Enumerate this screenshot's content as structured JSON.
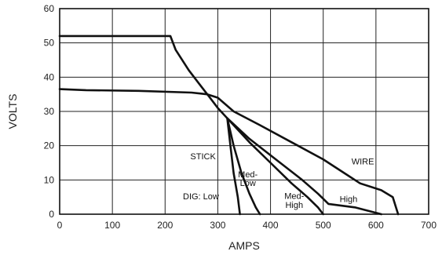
{
  "chart_data": {
    "type": "line",
    "title": "",
    "xlabel": "AMPS",
    "ylabel": "VOLTS",
    "xlim": [
      0,
      700
    ],
    "ylim": [
      0,
      60
    ],
    "x_ticks": [
      0,
      100,
      200,
      300,
      400,
      500,
      600,
      700
    ],
    "y_ticks": [
      0,
      10,
      20,
      30,
      40,
      50,
      60
    ],
    "grid": true,
    "series": [
      {
        "points": [
          [
            0,
            52
          ],
          [
            205,
            52
          ],
          [
            210,
            52
          ],
          [
            220,
            48
          ],
          [
            245,
            42
          ],
          [
            265,
            38
          ],
          [
            285,
            34
          ],
          [
            300,
            31
          ],
          [
            318,
            28
          ],
          [
            324,
            20
          ],
          [
            330,
            12
          ],
          [
            338,
            5
          ],
          [
            342,
            0
          ]
        ]
      },
      {
        "points": [
          [
            318,
            28
          ],
          [
            330,
            20
          ],
          [
            345,
            12
          ],
          [
            360,
            6
          ],
          [
            372,
            2
          ],
          [
            380,
            0
          ]
        ]
      },
      {
        "points": [
          [
            318,
            28
          ],
          [
            360,
            21
          ],
          [
            400,
            15
          ],
          [
            440,
            9
          ],
          [
            470,
            5
          ],
          [
            490,
            2
          ],
          [
            500,
            0
          ]
        ]
      },
      {
        "points": [
          [
            318,
            28
          ],
          [
            360,
            22
          ],
          [
            410,
            16
          ],
          [
            460,
            10
          ],
          [
            490,
            6
          ],
          [
            510,
            3
          ],
          [
            560,
            2
          ],
          [
            610,
            0
          ]
        ]
      },
      {
        "points": [
          [
            0,
            36.5
          ],
          [
            50,
            36.2
          ],
          [
            150,
            36
          ],
          [
            250,
            35.5
          ],
          [
            280,
            35
          ],
          [
            300,
            34
          ],
          [
            330,
            30
          ],
          [
            380,
            26
          ],
          [
            440,
            21
          ],
          [
            500,
            16
          ],
          [
            540,
            12
          ],
          [
            570,
            9
          ],
          [
            610,
            7
          ],
          [
            632,
            5
          ],
          [
            642,
            0
          ]
        ]
      }
    ],
    "annotations": [
      {
        "text": "STICK",
        "x": 272,
        "y": 16
      },
      {
        "text": "DIG: Low",
        "x": 268,
        "y": 4.4
      },
      {
        "text": "Med-",
        "x": 357,
        "y": 10.8
      },
      {
        "text": "Low",
        "x": 357,
        "y": 8.3
      },
      {
        "text": "Med-",
        "x": 445,
        "y": 4.5
      },
      {
        "text": "High",
        "x": 445,
        "y": 1.8
      },
      {
        "text": "WIRE",
        "x": 575,
        "y": 14.5
      },
      {
        "text": "High",
        "x": 548,
        "y": 3.6
      }
    ]
  }
}
